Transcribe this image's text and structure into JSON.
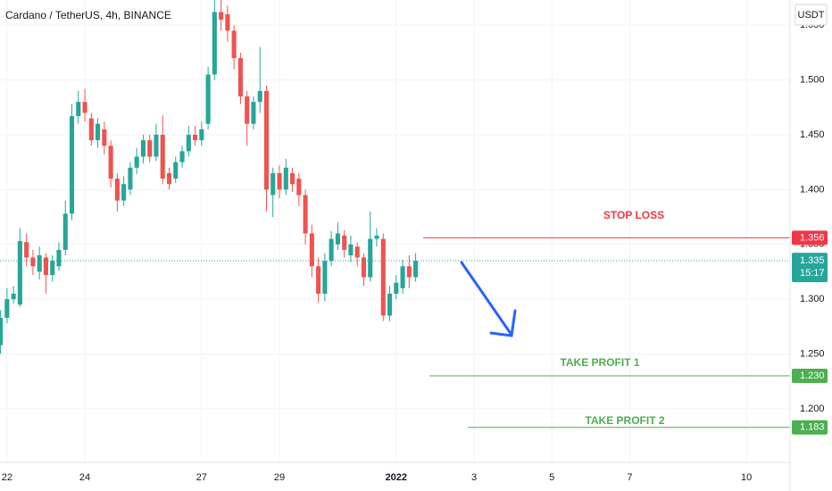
{
  "chart_data": {
    "type": "candlestick",
    "title": "Cardano / TetherUS, 4h, BINANCE",
    "currency": "USDT",
    "up_color": "#26a69a",
    "down_color": "#ef5350",
    "x": [
      -0.167,
      0,
      0.167,
      0.333,
      0.5,
      0.667,
      0.833,
      1,
      1.167,
      1.333,
      1.5,
      1.667,
      1.833,
      2,
      2.167,
      2.333,
      2.5,
      2.667,
      2.833,
      3,
      3.167,
      3.333,
      3.5,
      3.667,
      3.833,
      4,
      4.167,
      4.333,
      4.5,
      4.667,
      4.833,
      5,
      5.167,
      5.333,
      5.5,
      5.667,
      5.833,
      6,
      6.167,
      6.333,
      6.5,
      6.667,
      6.833,
      7,
      7.167,
      7.333,
      7.5,
      7.667,
      7.833,
      8,
      8.167,
      8.333,
      8.5,
      8.667,
      8.833,
      9,
      9.167,
      9.333,
      9.5,
      9.667,
      9.833,
      10,
      10.167,
      10.333,
      10.5
    ],
    "open": [
      1.258,
      1.283,
      1.3,
      1.295,
      1.352,
      1.338,
      1.325,
      1.338,
      1.322,
      1.33,
      1.345,
      1.378,
      1.467,
      1.48,
      1.465,
      1.445,
      1.455,
      1.44,
      1.41,
      1.39,
      1.4,
      1.42,
      1.43,
      1.445,
      1.43,
      1.45,
      1.415,
      1.41,
      1.425,
      1.435,
      1.45,
      1.445,
      1.46,
      1.505,
      1.562,
      1.56,
      1.545,
      1.52,
      1.485,
      1.46,
      1.48,
      1.49,
      1.395,
      1.415,
      1.4,
      1.415,
      1.41,
      1.395,
      1.36,
      1.33,
      1.305,
      1.335,
      1.35,
      1.358,
      1.34,
      1.348,
      1.338,
      1.32,
      1.355,
      1.355,
      1.285,
      1.305,
      1.31,
      1.33,
      1.32
    ],
    "high": [
      1.29,
      1.31,
      1.312,
      1.365,
      1.36,
      1.345,
      1.348,
      1.342,
      1.34,
      1.352,
      1.39,
      1.478,
      1.49,
      1.492,
      1.47,
      1.465,
      1.462,
      1.445,
      1.415,
      1.412,
      1.425,
      1.438,
      1.45,
      1.45,
      1.46,
      1.468,
      1.42,
      1.43,
      1.44,
      1.458,
      1.458,
      1.462,
      1.512,
      1.573,
      1.573,
      1.568,
      1.55,
      1.525,
      1.49,
      1.485,
      1.53,
      1.495,
      1.42,
      1.422,
      1.428,
      1.42,
      1.415,
      1.4,
      1.368,
      1.338,
      1.342,
      1.362,
      1.37,
      1.363,
      1.358,
      1.352,
      1.342,
      1.38,
      1.365,
      1.36,
      1.312,
      1.322,
      1.336,
      1.34,
      1.342
    ],
    "low": [
      1.25,
      1.278,
      1.296,
      1.293,
      1.33,
      1.322,
      1.318,
      1.305,
      1.316,
      1.326,
      1.34,
      1.372,
      1.46,
      1.462,
      1.44,
      1.438,
      1.432,
      1.402,
      1.38,
      1.385,
      1.395,
      1.414,
      1.424,
      1.425,
      1.426,
      1.405,
      1.4,
      1.406,
      1.42,
      1.43,
      1.44,
      1.44,
      1.455,
      1.5,
      1.545,
      1.535,
      1.51,
      1.478,
      1.44,
      1.455,
      1.47,
      1.38,
      1.375,
      1.392,
      1.395,
      1.398,
      1.385,
      1.35,
      1.32,
      1.297,
      1.298,
      1.33,
      1.345,
      1.338,
      1.334,
      1.33,
      1.312,
      1.316,
      1.348,
      1.28,
      1.28,
      1.3,
      1.305,
      1.31,
      1.316
    ],
    "close": [
      1.283,
      1.3,
      1.305,
      1.353,
      1.338,
      1.33,
      1.34,
      1.322,
      1.335,
      1.345,
      1.378,
      1.467,
      1.48,
      1.47,
      1.445,
      1.46,
      1.44,
      1.41,
      1.39,
      1.405,
      1.42,
      1.43,
      1.445,
      1.43,
      1.45,
      1.41,
      1.405,
      1.425,
      1.435,
      1.45,
      1.445,
      1.455,
      1.505,
      1.562,
      1.555,
      1.545,
      1.52,
      1.485,
      1.46,
      1.48,
      1.49,
      1.4,
      1.415,
      1.4,
      1.42,
      1.405,
      1.395,
      1.36,
      1.33,
      1.305,
      1.335,
      1.355,
      1.36,
      1.345,
      1.35,
      1.338,
      1.32,
      1.355,
      1.358,
      1.285,
      1.305,
      1.315,
      1.33,
      1.32,
      1.335
    ],
    "xlim": [
      -0.18,
      20.12
    ],
    "xticks": [
      {
        "value": 0,
        "label": "22"
      },
      {
        "value": 2,
        "label": "24"
      },
      {
        "value": 5,
        "label": "27"
      },
      {
        "value": 7,
        "label": "29"
      },
      {
        "value": 10,
        "label": "2022"
      },
      {
        "value": 12,
        "label": "3"
      },
      {
        "value": 14,
        "label": "5"
      },
      {
        "value": 16,
        "label": "7"
      },
      {
        "value": 19,
        "label": "10"
      }
    ],
    "ylim": [
      1.151,
      1.573
    ],
    "yticks": [
      {
        "value": 1.2,
        "label": "1.200"
      },
      {
        "value": 1.25,
        "label": "1.250"
      },
      {
        "value": 1.3,
        "label": "1.300"
      },
      {
        "value": 1.35,
        "label": "1.350"
      },
      {
        "value": 1.4,
        "label": "1.400"
      },
      {
        "value": 1.45,
        "label": "1.450"
      },
      {
        "value": 1.5,
        "label": "1.500"
      },
      {
        "value": 1.55,
        "label": "1.550"
      }
    ],
    "grid": true,
    "current_price": {
      "value": 1.335,
      "label": "1.335"
    },
    "countdown": "15:17",
    "current_color": "#26a69a",
    "levels": [
      {
        "name": "STOP LOSS",
        "price": {
          "value": 1.356,
          "label": "1.356"
        },
        "color": "#f23645"
      },
      {
        "name": "TAKE PROFIT 1",
        "price": {
          "value": 1.23,
          "label": "1.230"
        },
        "color": "#4caf50"
      },
      {
        "name": "TAKE PROFIT 2",
        "price": {
          "value": 1.183,
          "label": "1.183"
        },
        "color": "#4caf50"
      }
    ]
  }
}
